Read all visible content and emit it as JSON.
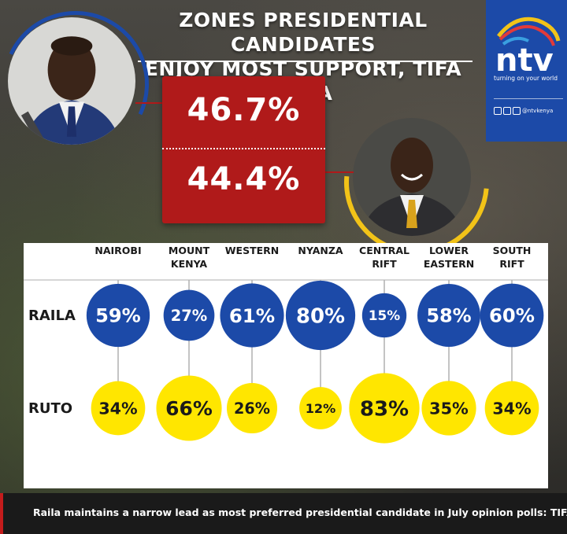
{
  "header": {
    "title_line1": "ZONES PRESIDENTIAL CANDIDATES",
    "title_line2": "ENJOY MOST SUPPORT, TIFA DATA"
  },
  "brand": {
    "logo_text": "ntv",
    "tagline": "turning on your world",
    "social_handle": "@ntvkenya",
    "colors": {
      "blue": "#1c4aa8",
      "red": "#c41c1c",
      "yellow": "#f2c318"
    }
  },
  "overall": {
    "raila_pct": "46.7%",
    "ruto_pct": "44.4%"
  },
  "photos": {
    "raila_icon": "candidate-portrait",
    "ruto_icon": "candidate-portrait"
  },
  "chart_data": {
    "type": "table",
    "categories": [
      "NAIROBI",
      "MOUNT KENYA",
      "WESTERN",
      "NYANZA",
      "CENTRAL RIFT",
      "LOWER EASTERN",
      "SOUTH RIFT"
    ],
    "category_lines": [
      [
        "NAIROBI"
      ],
      [
        "MOUNT",
        "KENYA"
      ],
      [
        "WESTERN"
      ],
      [
        "NYANZA"
      ],
      [
        "CENTRAL",
        "RIFT"
      ],
      [
        "LOWER",
        "EASTERN"
      ],
      [
        "SOUTH",
        "RIFT"
      ]
    ],
    "series": [
      {
        "name": "RAILA",
        "values": [
          59,
          27,
          61,
          80,
          15,
          58,
          60
        ],
        "color": "#1c4aa8",
        "text_color": "#ffffff"
      },
      {
        "name": "RUTO",
        "values": [
          34,
          66,
          26,
          12,
          83,
          35,
          34
        ],
        "color": "#ffe600",
        "text_color": "#1a1a1a"
      }
    ],
    "unit": "%"
  },
  "caption": {
    "text": "Raila maintains a narrow lead as most preferred presidential candidate in July opinion polls: TIFA"
  }
}
